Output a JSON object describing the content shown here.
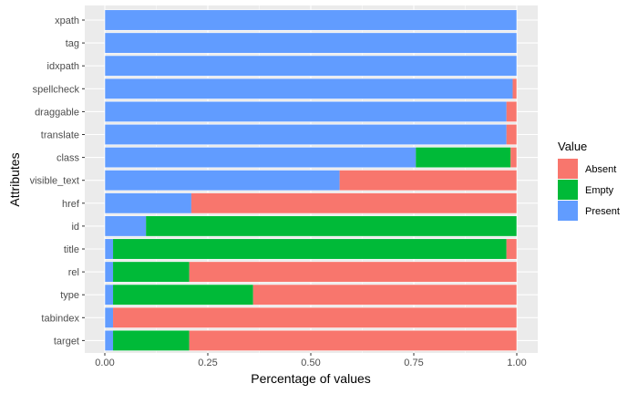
{
  "chart_data": {
    "type": "bar",
    "orientation": "horizontal",
    "stacked": true,
    "title": "",
    "xlabel": "Percentage of values",
    "ylabel": "Attributes",
    "xlim": [
      0,
      1
    ],
    "xticks": [
      "0.00",
      "0.25",
      "0.50",
      "0.75",
      "1.00"
    ],
    "xtick_values": [
      0,
      0.25,
      0.5,
      0.75,
      1.0
    ],
    "grid": true,
    "legend_position": "right",
    "legend_title": "Value",
    "categories": [
      "xpath",
      "tag",
      "idxpath",
      "spellcheck",
      "draggable",
      "translate",
      "class",
      "visible_text",
      "href",
      "id",
      "title",
      "rel",
      "type",
      "tabindex",
      "target"
    ],
    "series": [
      {
        "name": "Present",
        "color": "#619CFF",
        "values": [
          1.0,
          1.0,
          1.0,
          0.99,
          0.975,
          0.975,
          0.755,
          0.57,
          0.21,
          0.1,
          0.02,
          0.02,
          0.02,
          0.02,
          0.02
        ]
      },
      {
        "name": "Empty",
        "color": "#00BA38",
        "values": [
          0.0,
          0.0,
          0.0,
          0.0,
          0.0,
          0.0,
          0.23,
          0.0,
          0.0,
          0.9,
          0.955,
          0.185,
          0.34,
          0.0,
          0.185
        ]
      },
      {
        "name": "Absent",
        "color": "#F8766D",
        "values": [
          0.0,
          0.0,
          0.0,
          0.01,
          0.025,
          0.025,
          0.015,
          0.43,
          0.79,
          0.0,
          0.025,
          0.795,
          0.64,
          0.98,
          0.795
        ]
      }
    ],
    "legend_order": [
      "Absent",
      "Empty",
      "Present"
    ]
  }
}
